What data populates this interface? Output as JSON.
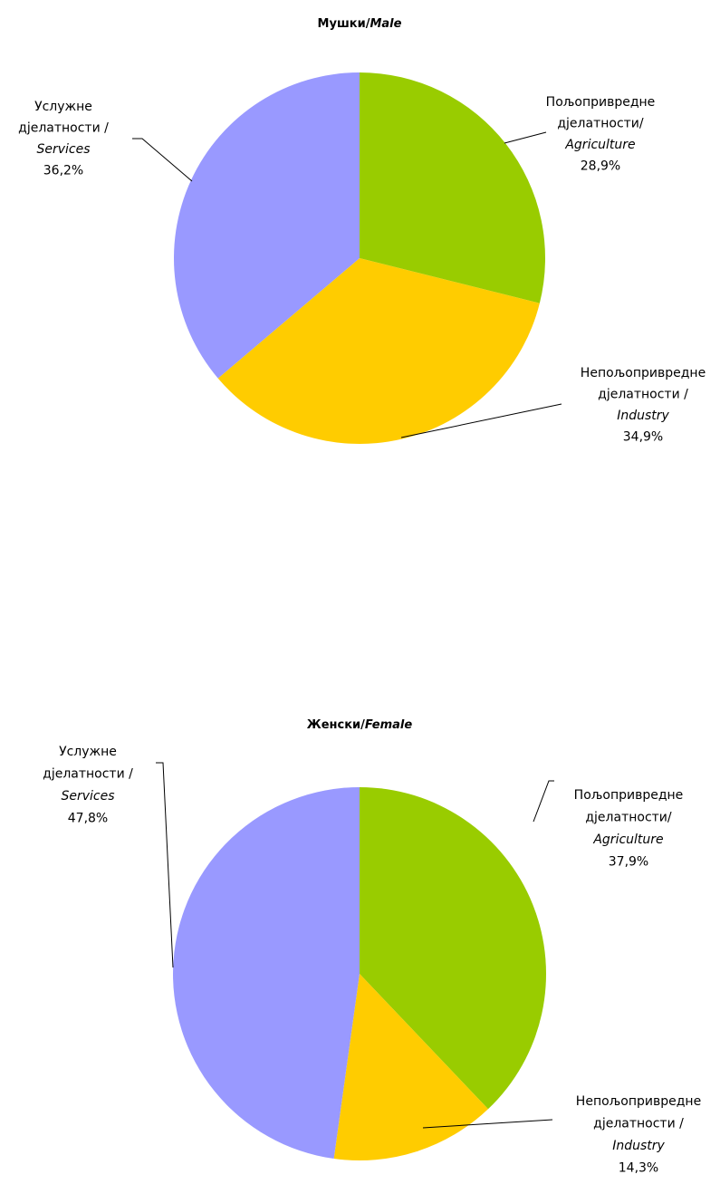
{
  "chart_data": [
    {
      "type": "pie",
      "title": [
        "Мушки/",
        "Male"
      ],
      "categories": [
        [
          "Пољопривредне",
          "дјелатности/",
          "Agriculture"
        ],
        [
          "Непољопривредне",
          "дјелатности /",
          "Industry"
        ],
        [
          "Услужне",
          "дјелатности /",
          "Services"
        ]
      ],
      "values": [
        28.9,
        34.9,
        36.2
      ],
      "value_labels": [
        "28,9%",
        "34,9%",
        "36,2%"
      ],
      "colors": [
        "#99cc00",
        "#ffcc00",
        "#9999ff"
      ]
    },
    {
      "type": "pie",
      "title": [
        "Женски/",
        "Female"
      ],
      "categories": [
        [
          "Пољопривредне",
          "дјелатности/",
          "Agriculture"
        ],
        [
          "Непољопривредне",
          "дјелатности /",
          "Industry"
        ],
        [
          "Услужне",
          "дјелатности /",
          "Services"
        ]
      ],
      "values": [
        37.9,
        14.3,
        47.8
      ],
      "value_labels": [
        "37,9%",
        "14,3%",
        "47,8%"
      ],
      "colors": [
        "#99cc00",
        "#ffcc00",
        "#9999ff"
      ]
    }
  ]
}
